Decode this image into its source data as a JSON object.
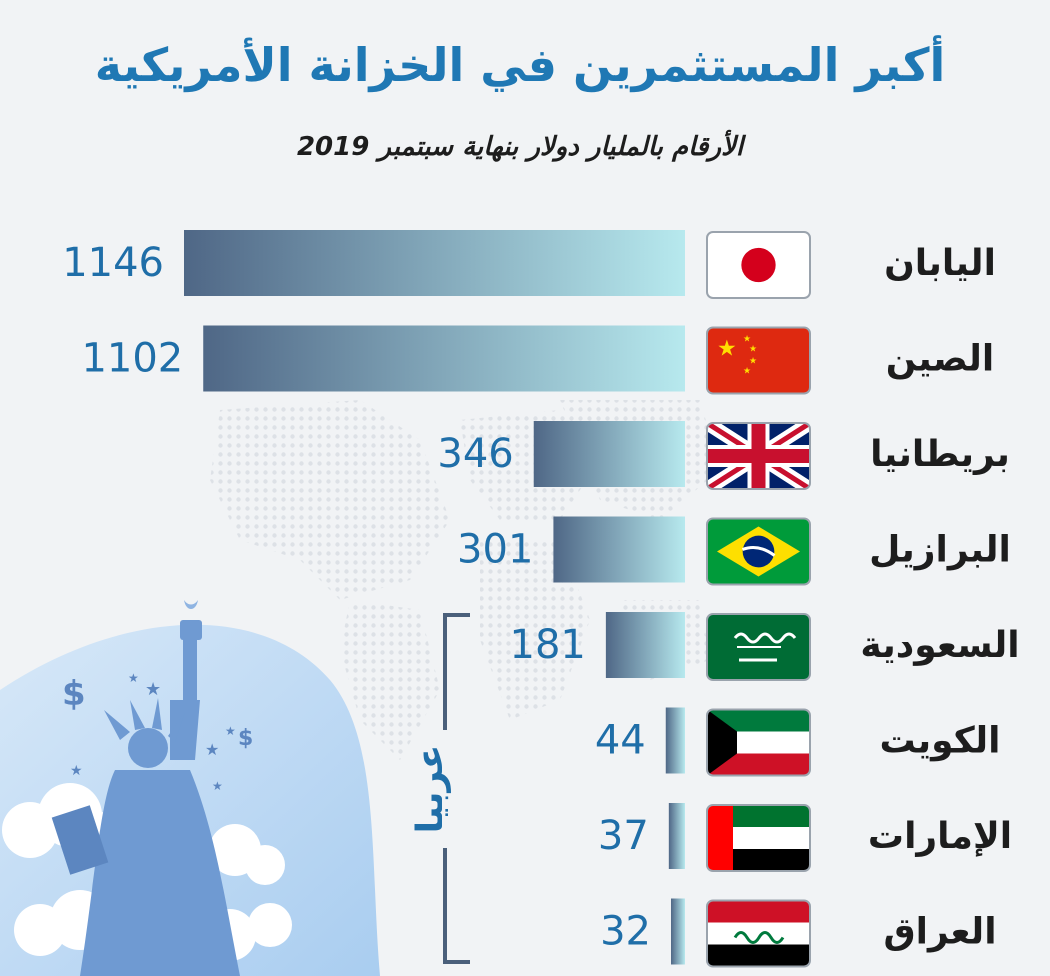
{
  "header": {
    "title": "أكبر المستثمرين في الخزانة الأمريكية",
    "subtitle": "الأرقام بالمليار دولار بنهاية سبتمبر 2019"
  },
  "bracket": {
    "label": "عربيا"
  },
  "colors": {
    "title": "#1f78b4",
    "value_text": "#1f6ea8",
    "bar_start": "#b7e9ee",
    "bar_end": "#4f6786",
    "bracket": "#4a5f7a",
    "illustration": "#6f9ad2"
  },
  "icons": [
    "statue-of-liberty-icon",
    "dollar-sign-icon",
    "star-icon",
    "cloud-icon",
    "flag-icon"
  ],
  "chart_data": {
    "type": "bar",
    "orientation": "horizontal",
    "categories": [
      "اليابان",
      "الصين",
      "بريطانيا",
      "البرازيل",
      "السعودية",
      "الكويت",
      "الإمارات",
      "العراق"
    ],
    "values": [
      1146,
      1102,
      346,
      301,
      181,
      44,
      37,
      32
    ],
    "flags": [
      "japan",
      "china",
      "uk",
      "brazil",
      "saudi",
      "kuwait",
      "uae",
      "iraq"
    ],
    "title": "أكبر المستثمرين في الخزانة الأمريكية",
    "xlabel": "",
    "ylabel": "",
    "xlim": [
      0,
      1146
    ],
    "grid": false,
    "legend": "none"
  }
}
